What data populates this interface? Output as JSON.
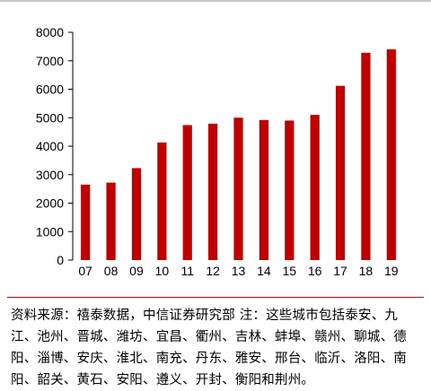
{
  "chart_data": {
    "type": "bar",
    "categories": [
      "07",
      "08",
      "09",
      "10",
      "11",
      "12",
      "13",
      "14",
      "15",
      "16",
      "17",
      "18",
      "19"
    ],
    "values": [
      2650,
      2720,
      3230,
      4130,
      4740,
      4790,
      5000,
      4920,
      4900,
      5100,
      6120,
      7280,
      7400
    ],
    "ylim": [
      0,
      8000
    ],
    "yticks": [
      0,
      1000,
      2000,
      3000,
      4000,
      5000,
      6000,
      7000,
      8000
    ],
    "grid": false,
    "legend": "none",
    "bar_color": "#c00000"
  },
  "source_note": "资料来源：禧泰数据，中信证券研究部 注：这些城市包括泰安、九江、池州、晋城、潍坊、宜昌、衢州、吉林、蚌埠、赣州、聊城、德阳、淄博、安庆、淮北、南充、丹东、雅安、邢台、临沂、洛阳、南阳、韶关、黄石、安阳、遵义、开封、衡阳和荆州。",
  "colors": {
    "divider": "#8b1a1a",
    "axis": "#000000"
  }
}
